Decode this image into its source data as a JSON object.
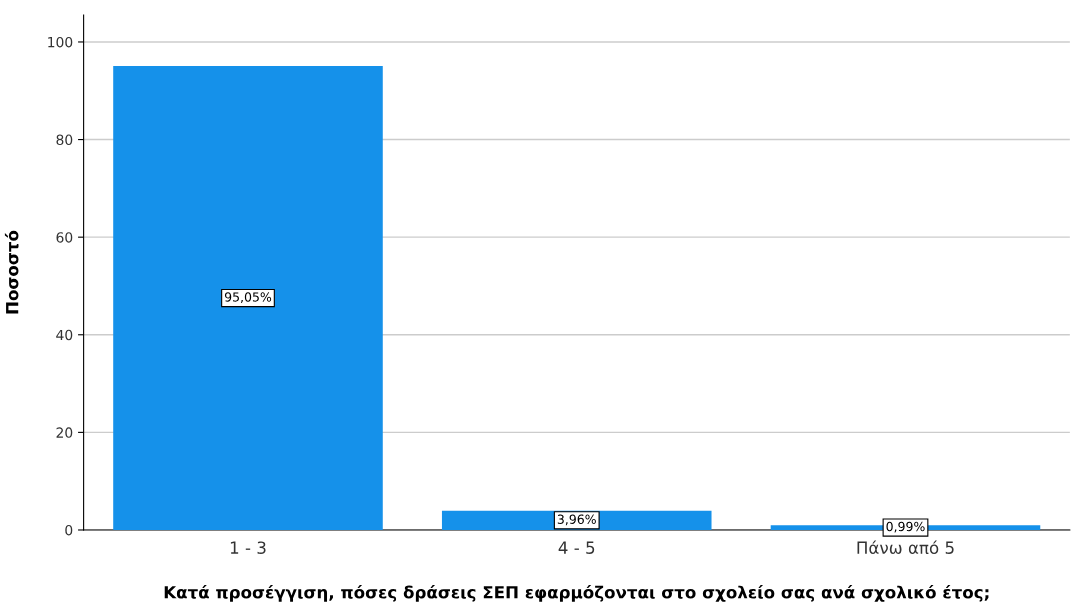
{
  "chart_data": {
    "type": "bar",
    "xlabel": "Κατά προσέγγιση, πόσες δράσεις ΣΕΠ εφαρμόζονται στο σχολείο σας ανά σχολικό έτος;",
    "ylabel": "Ποσοστό",
    "categories": [
      "1 - 3",
      "4 - 5",
      "Πάνω από 5"
    ],
    "values": [
      95.05,
      3.96,
      0.99
    ],
    "color": "#1591ea",
    "value_labels": [
      "95,05%",
      "3,96%",
      "0,99%"
    ],
    "ylim": [
      0,
      105.5
    ],
    "yticks": [
      0,
      20,
      40,
      60,
      80,
      100
    ],
    "grid": "y"
  }
}
